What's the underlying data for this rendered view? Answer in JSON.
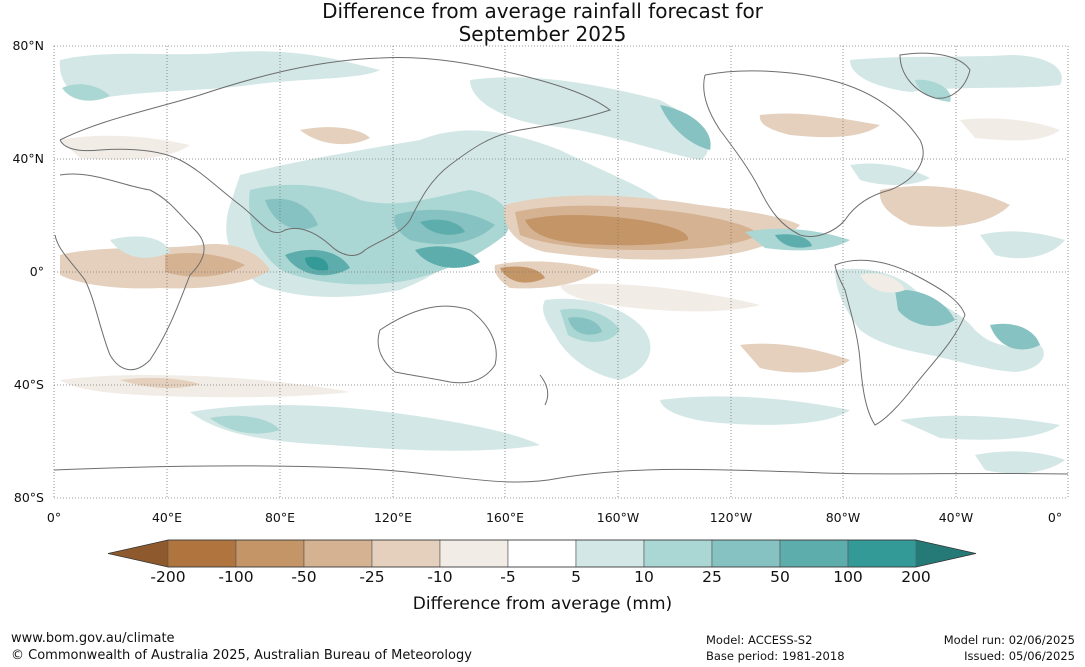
{
  "title_line1": "Difference from average rainfall forecast for",
  "title_line2": "September 2025",
  "map": {
    "lat_labels": [
      "80°N",
      "40°N",
      "0°",
      "40°S",
      "80°S"
    ],
    "lon_labels": [
      "0°",
      "40°E",
      "80°E",
      "120°E",
      "160°E",
      "160°W",
      "120°W",
      "80°W",
      "40°W",
      "0°"
    ],
    "graticule": "dotted"
  },
  "colorbar": {
    "title": "Difference from average (mm)",
    "tick_labels": [
      "-200",
      "-100",
      "-50",
      "-25",
      "-10",
      "-5",
      "5",
      "10",
      "25",
      "50",
      "100",
      "200"
    ],
    "colors": {
      "below_min": "#8e5a2d",
      "bins": [
        "#b0753f",
        "#c49567",
        "#d5b292",
        "#e4d0bc",
        "#f1ece6",
        "#ffffff",
        "#d3e8e6",
        "#aad6d4",
        "#86c2c1",
        "#5eadad",
        "#349a98"
      ],
      "above_max": "#257a78"
    }
  },
  "footer": {
    "url": "www.bom.gov.au/climate",
    "copyright": "© Commonwealth of Australia 2025, Australian Bureau of Meteorology",
    "model": "Model: ACCESS-S2",
    "base_period": "Base period: 1981-2018",
    "model_run": "Model run: 02/06/2025",
    "issued": "Issued: 05/06/2025"
  }
}
